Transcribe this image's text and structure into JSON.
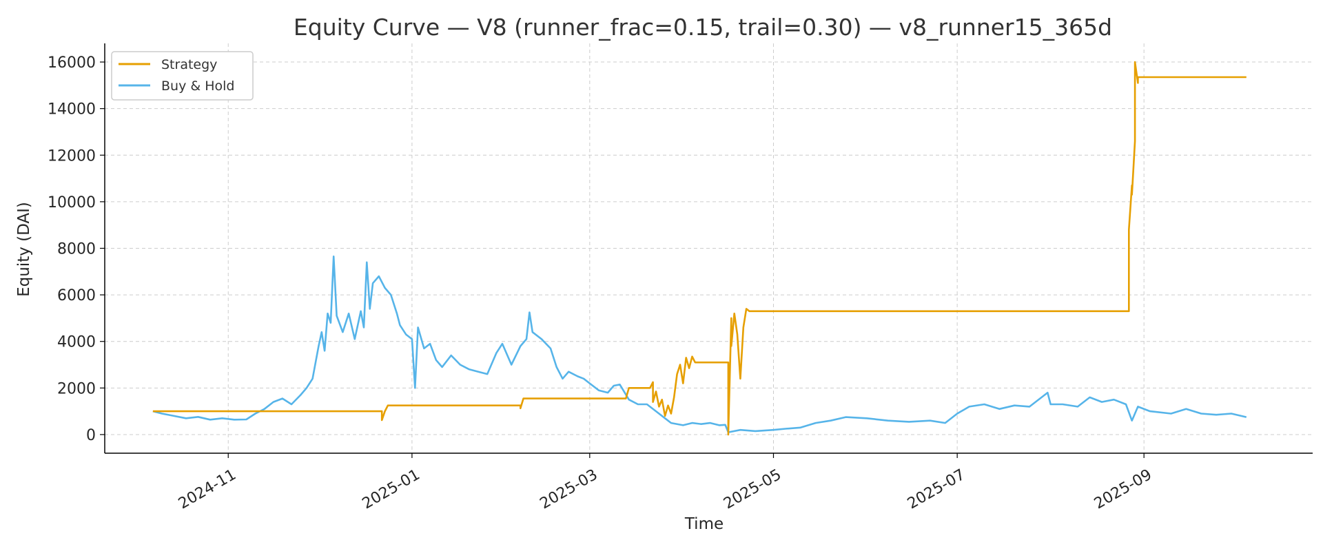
{
  "chart_data": {
    "type": "line",
    "title": "Equity Curve — V8 (runner_frac=0.15, trail=0.30) — v8_runner15_365d",
    "xlabel": "Time",
    "ylabel": "Equity (DAI)",
    "xlim": [
      "2024-09-21",
      "2025-10-27"
    ],
    "ylim": [
      -800,
      16800
    ],
    "x_ticks": [
      "2024-11-01",
      "2025-01-01",
      "2025-03-01",
      "2025-05-01",
      "2025-07-01",
      "2025-09-01"
    ],
    "x_tick_labels": [
      "2024-11",
      "2025-01",
      "2025-03",
      "2025-05",
      "2025-07",
      "2025-09"
    ],
    "y_ticks": [
      0,
      2000,
      4000,
      6000,
      8000,
      10000,
      12000,
      14000,
      16000
    ],
    "y_tick_labels": [
      "0",
      "2000",
      "4000",
      "6000",
      "8000",
      "10000",
      "12000",
      "14000",
      "16000"
    ],
    "grid": true,
    "legend_position": "top-left",
    "colors": {
      "strategy": "#E69F00",
      "buy_hold": "#56B4E9",
      "grid": "#cccccc",
      "axis": "#000000"
    },
    "series": [
      {
        "name": "Strategy",
        "color": "#E69F00",
        "points": [
          [
            "2024-10-07",
            1000
          ],
          [
            "2024-12-22",
            1000
          ],
          [
            "2024-12-22",
            620
          ],
          [
            "2024-12-23",
            1000
          ],
          [
            "2024-12-24",
            1250
          ],
          [
            "2025-02-06",
            1250
          ],
          [
            "2025-02-06",
            1130
          ],
          [
            "2025-02-07",
            1550
          ],
          [
            "2025-03-13",
            1550
          ],
          [
            "2025-03-14",
            2000
          ],
          [
            "2025-03-21",
            2000
          ],
          [
            "2025-03-22",
            2250
          ],
          [
            "2025-03-22",
            1400
          ],
          [
            "2025-03-23",
            1850
          ],
          [
            "2025-03-24",
            1200
          ],
          [
            "2025-03-25",
            1500
          ],
          [
            "2025-03-26",
            800
          ],
          [
            "2025-03-27",
            1250
          ],
          [
            "2025-03-28",
            900
          ],
          [
            "2025-03-29",
            1600
          ],
          [
            "2025-03-30",
            2600
          ],
          [
            "2025-03-31",
            3000
          ],
          [
            "2025-04-01",
            2200
          ],
          [
            "2025-04-02",
            3300
          ],
          [
            "2025-04-03",
            2850
          ],
          [
            "2025-04-04",
            3350
          ],
          [
            "2025-04-05",
            3100
          ],
          [
            "2025-04-16",
            3100
          ],
          [
            "2025-04-16",
            0
          ],
          [
            "2025-04-17",
            5000
          ],
          [
            "2025-04-17",
            3800
          ],
          [
            "2025-04-18",
            5200
          ],
          [
            "2025-04-19",
            4300
          ],
          [
            "2025-04-20",
            2400
          ],
          [
            "2025-04-21",
            4600
          ],
          [
            "2025-04-22",
            5400
          ],
          [
            "2025-04-23",
            5300
          ],
          [
            "2025-08-27",
            5300
          ],
          [
            "2025-08-27",
            8800
          ],
          [
            "2025-08-28",
            10700
          ],
          [
            "2025-08-28",
            10300
          ],
          [
            "2025-08-29",
            12600
          ],
          [
            "2025-08-29",
            14500
          ],
          [
            "2025-08-29",
            16000
          ],
          [
            "2025-08-30",
            15100
          ],
          [
            "2025-08-30",
            15350
          ],
          [
            "2025-10-05",
            15350
          ]
        ]
      },
      {
        "name": "Buy & Hold",
        "color": "#56B4E9",
        "points": [
          [
            "2024-10-07",
            1000
          ],
          [
            "2024-10-10",
            900
          ],
          [
            "2024-10-14",
            800
          ],
          [
            "2024-10-18",
            700
          ],
          [
            "2024-10-22",
            760
          ],
          [
            "2024-10-26",
            640
          ],
          [
            "2024-10-30",
            700
          ],
          [
            "2024-11-03",
            640
          ],
          [
            "2024-11-07",
            650
          ],
          [
            "2024-11-10",
            900
          ],
          [
            "2024-11-13",
            1100
          ],
          [
            "2024-11-16",
            1400
          ],
          [
            "2024-11-19",
            1550
          ],
          [
            "2024-11-22",
            1300
          ],
          [
            "2024-11-25",
            1700
          ],
          [
            "2024-11-27",
            2000
          ],
          [
            "2024-11-29",
            2400
          ],
          [
            "2024-12-01",
            3800
          ],
          [
            "2024-12-02",
            4400
          ],
          [
            "2024-12-03",
            3600
          ],
          [
            "2024-12-04",
            5200
          ],
          [
            "2024-12-05",
            4800
          ],
          [
            "2024-12-06",
            7650
          ],
          [
            "2024-12-07",
            5100
          ],
          [
            "2024-12-09",
            4400
          ],
          [
            "2024-12-11",
            5200
          ],
          [
            "2024-12-13",
            4100
          ],
          [
            "2024-12-15",
            5300
          ],
          [
            "2024-12-16",
            4600
          ],
          [
            "2024-12-17",
            7400
          ],
          [
            "2024-12-18",
            5400
          ],
          [
            "2024-12-19",
            6500
          ],
          [
            "2024-12-21",
            6800
          ],
          [
            "2024-12-23",
            6300
          ],
          [
            "2024-12-25",
            6000
          ],
          [
            "2024-12-27",
            5200
          ],
          [
            "2024-12-28",
            4700
          ],
          [
            "2024-12-30",
            4300
          ],
          [
            "2025-01-01",
            4100
          ],
          [
            "2025-01-02",
            2000
          ],
          [
            "2025-01-03",
            4600
          ],
          [
            "2025-01-05",
            3700
          ],
          [
            "2025-01-07",
            3900
          ],
          [
            "2025-01-09",
            3200
          ],
          [
            "2025-01-11",
            2900
          ],
          [
            "2025-01-14",
            3400
          ],
          [
            "2025-01-17",
            3000
          ],
          [
            "2025-01-20",
            2800
          ],
          [
            "2025-01-23",
            2700
          ],
          [
            "2025-01-26",
            2600
          ],
          [
            "2025-01-29",
            3500
          ],
          [
            "2025-01-31",
            3900
          ],
          [
            "2025-02-03",
            3000
          ],
          [
            "2025-02-06",
            3800
          ],
          [
            "2025-02-08",
            4100
          ],
          [
            "2025-02-09",
            5250
          ],
          [
            "2025-02-10",
            4400
          ],
          [
            "2025-02-13",
            4100
          ],
          [
            "2025-02-16",
            3700
          ],
          [
            "2025-02-18",
            2900
          ],
          [
            "2025-02-20",
            2400
          ],
          [
            "2025-02-22",
            2700
          ],
          [
            "2025-02-25",
            2500
          ],
          [
            "2025-02-27",
            2400
          ],
          [
            "2025-03-01",
            2200
          ],
          [
            "2025-03-04",
            1900
          ],
          [
            "2025-03-07",
            1800
          ],
          [
            "2025-03-09",
            2100
          ],
          [
            "2025-03-11",
            2150
          ],
          [
            "2025-03-14",
            1500
          ],
          [
            "2025-03-17",
            1300
          ],
          [
            "2025-03-20",
            1300
          ],
          [
            "2025-03-23",
            1000
          ],
          [
            "2025-03-26",
            700
          ],
          [
            "2025-03-28",
            500
          ],
          [
            "2025-04-01",
            400
          ],
          [
            "2025-04-04",
            500
          ],
          [
            "2025-04-07",
            450
          ],
          [
            "2025-04-10",
            500
          ],
          [
            "2025-04-13",
            400
          ],
          [
            "2025-04-15",
            420
          ],
          [
            "2025-04-16",
            100
          ],
          [
            "2025-04-20",
            200
          ],
          [
            "2025-04-25",
            150
          ],
          [
            "2025-05-01",
            200
          ],
          [
            "2025-05-05",
            250
          ],
          [
            "2025-05-10",
            300
          ],
          [
            "2025-05-15",
            500
          ],
          [
            "2025-05-20",
            600
          ],
          [
            "2025-05-25",
            750
          ],
          [
            "2025-06-01",
            700
          ],
          [
            "2025-06-08",
            600
          ],
          [
            "2025-06-15",
            550
          ],
          [
            "2025-06-22",
            600
          ],
          [
            "2025-06-27",
            500
          ],
          [
            "2025-07-01",
            900
          ],
          [
            "2025-07-05",
            1200
          ],
          [
            "2025-07-10",
            1300
          ],
          [
            "2025-07-15",
            1100
          ],
          [
            "2025-07-20",
            1250
          ],
          [
            "2025-07-25",
            1200
          ],
          [
            "2025-07-31",
            1800
          ],
          [
            "2025-08-01",
            1300
          ],
          [
            "2025-08-05",
            1300
          ],
          [
            "2025-08-10",
            1200
          ],
          [
            "2025-08-14",
            1600
          ],
          [
            "2025-08-18",
            1400
          ],
          [
            "2025-08-22",
            1500
          ],
          [
            "2025-08-26",
            1300
          ],
          [
            "2025-08-28",
            600
          ],
          [
            "2025-08-30",
            1200
          ],
          [
            "2025-09-03",
            1000
          ],
          [
            "2025-09-10",
            900
          ],
          [
            "2025-09-15",
            1100
          ],
          [
            "2025-09-20",
            900
          ],
          [
            "2025-09-25",
            850
          ],
          [
            "2025-09-30",
            900
          ],
          [
            "2025-10-05",
            750
          ]
        ]
      }
    ]
  }
}
